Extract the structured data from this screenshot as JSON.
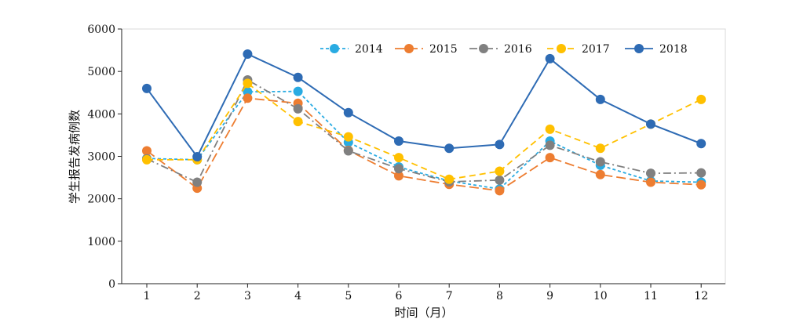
{
  "chart_data": {
    "type": "line",
    "title": "",
    "xlabel": "时间（月）",
    "ylabel": "学生报告发病例数",
    "categories": [
      "1",
      "2",
      "3",
      "4",
      "5",
      "6",
      "7",
      "8",
      "9",
      "10",
      "11",
      "12"
    ],
    "ylim": [
      0,
      6000
    ],
    "yticks": [
      0,
      1000,
      2000,
      3000,
      4000,
      5000,
      6000
    ],
    "grid": false,
    "legend_position": "top-right",
    "series": [
      {
        "name": "2014",
        "color": "#29abe2",
        "dash": "short-dash",
        "values": [
          2950,
          2920,
          4520,
          4530,
          3330,
          2750,
          2420,
          2230,
          3360,
          2790,
          2420,
          2390
        ]
      },
      {
        "name": "2015",
        "color": "#ed7d31",
        "dash": "long-dash",
        "values": [
          3130,
          2250,
          4370,
          4250,
          3140,
          2540,
          2340,
          2190,
          2970,
          2570,
          2390,
          2330
        ]
      },
      {
        "name": "2016",
        "color": "#808080",
        "dash": "dash-dot",
        "values": [
          2940,
          2390,
          4800,
          4120,
          3130,
          2710,
          2400,
          2440,
          3260,
          2870,
          2600,
          2610
        ]
      },
      {
        "name": "2017",
        "color": "#ffc000",
        "dash": "dashed",
        "values": [
          2920,
          2920,
          4720,
          3820,
          3460,
          2970,
          2460,
          2650,
          3640,
          3190,
          3760,
          4340
        ]
      },
      {
        "name": "2018",
        "color": "#2e6bb4",
        "dash": "solid",
        "values": [
          4600,
          2990,
          5410,
          4860,
          4030,
          3360,
          3190,
          3280,
          5300,
          4340,
          3760,
          3300
        ]
      }
    ]
  }
}
